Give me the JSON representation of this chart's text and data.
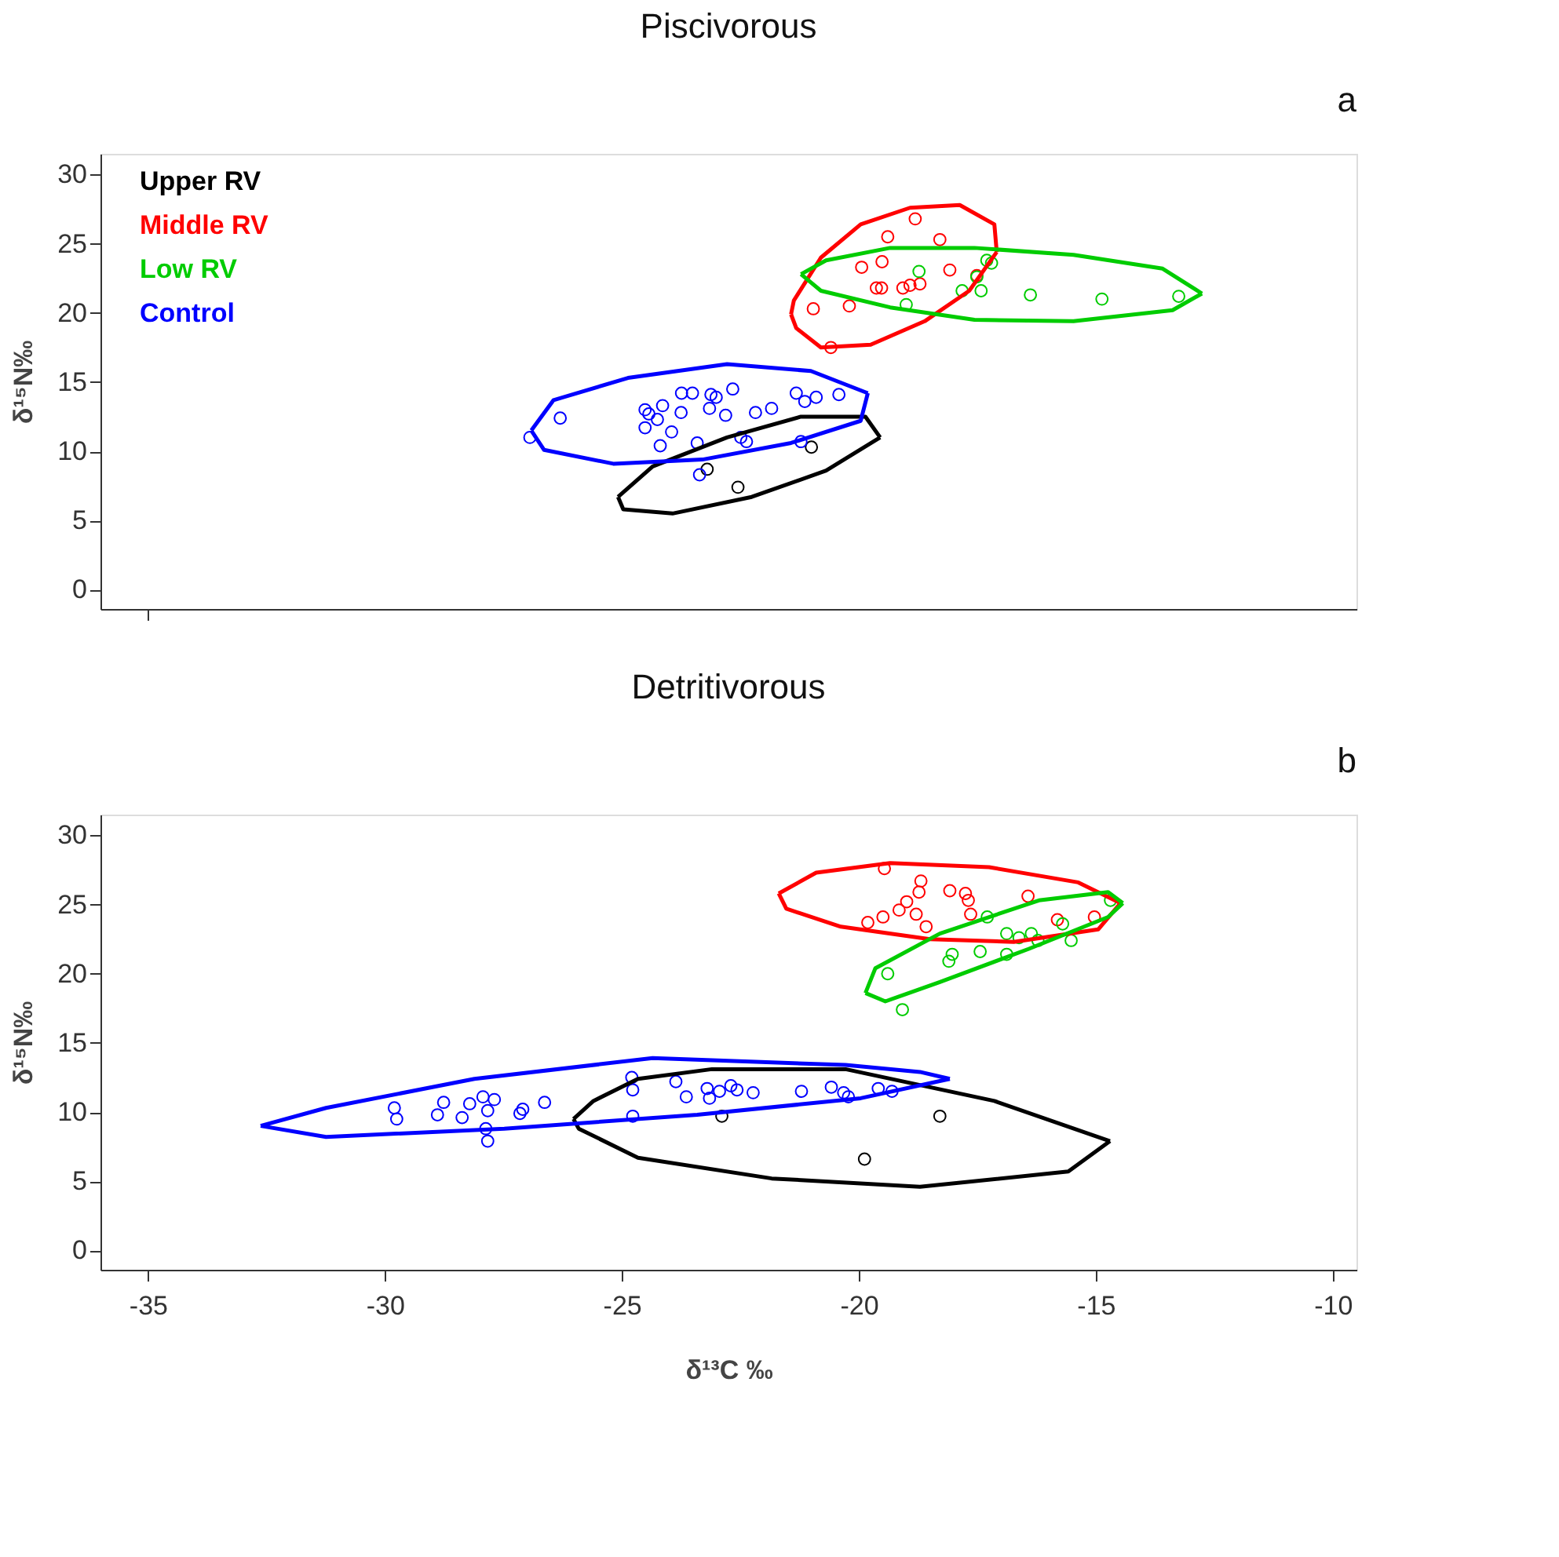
{
  "chart_data": [
    {
      "type": "scatter",
      "title": "Piscivorous",
      "ylabel": "δ¹⁵N‰",
      "annotations": [
        "a"
      ],
      "xlim": [
        -36,
        -9.5
      ],
      "ylim": [
        -1.4,
        31.5
      ],
      "xticks": [
        {
          "value": -35,
          "label": null
        }
      ],
      "yticks": [
        0,
        5,
        10,
        15,
        20,
        25,
        30
      ],
      "tick_labels": "y",
      "grid": false,
      "legend": "top left",
      "marker": "circle",
      "series": [
        {
          "name": "Upper RV",
          "color": "#000000",
          "x": [
            -23.2,
            -22.55,
            -21.0
          ],
          "values": [
            8.7,
            7.4,
            10.3
          ]
        },
        {
          "name": "Middle RV",
          "color": "#ff0000",
          "x": [
            -18.81,
            -19.39,
            -18.29,
            -19.51,
            -19.94,
            -18.08,
            -17.51,
            -19.63,
            -19.52,
            -19.07,
            -18.71,
            -18.92,
            -20.96,
            -20.2,
            -20.59
          ],
          "values": [
            26.8,
            25.5,
            25.3,
            23.7,
            23.3,
            23.1,
            22.7,
            21.8,
            21.8,
            21.8,
            22.1,
            22.0,
            20.3,
            20.5,
            17.5
          ]
        },
        {
          "name": "Low RV",
          "color": "#00cc00",
          "x": [
            -17.2,
            -17.3,
            -18.73,
            -17.51,
            -17.82,
            -17.42,
            -16.38,
            -14.87,
            -13.25,
            -19.0
          ],
          "values": [
            23.6,
            23.8,
            23.0,
            22.6,
            21.6,
            21.6,
            21.3,
            21.0,
            21.2,
            20.6
          ]
        },
        {
          "name": "Control",
          "color": "#0000ff",
          "x": [
            -26.94,
            -26.3,
            -24.51,
            -24.43,
            -24.14,
            -24.51,
            -24.25,
            -23.95,
            -24.19,
            -23.75,
            -23.74,
            -23.51,
            -23.12,
            -23.01,
            -23.15,
            -22.81,
            -22.66,
            -22.18,
            -21.84,
            -23.41,
            -22.49,
            -22.37,
            -23.36,
            -21.32,
            -21.14,
            -20.9,
            -20.42,
            -21.22
          ],
          "values": [
            11.0,
            12.4,
            13.0,
            12.7,
            13.3,
            11.7,
            12.3,
            11.4,
            10.4,
            12.8,
            14.2,
            14.2,
            14.1,
            13.9,
            13.1,
            12.6,
            14.5,
            12.8,
            13.1,
            10.6,
            11.0,
            10.7,
            8.3,
            14.2,
            13.6,
            13.9,
            14.1,
            10.7
          ]
        },
        {
          "type": "line",
          "marker": "none",
          "color": "#000000",
          "x": [
            -25.08,
            -24.35,
            -22.78,
            -21.22,
            -19.86,
            -19.55
          ],
          "values": [
            6.7,
            8.9,
            11.0,
            12.5,
            12.5,
            11.0
          ]
        },
        {
          "type": "line",
          "marker": "none",
          "color": "#000000",
          "x": [
            -25.08,
            -24.97,
            -23.93,
            -22.26,
            -20.69,
            -19.55
          ],
          "values": [
            6.7,
            5.8,
            5.5,
            6.7,
            8.6,
            11.0
          ]
        },
        {
          "type": "line",
          "marker": "none",
          "color": "#ff0000",
          "x": [
            -21.43,
            -21.37,
            -20.8,
            -19.96,
            -18.92,
            -17.87,
            -17.14,
            -17.09
          ],
          "values": [
            19.9,
            20.9,
            24.0,
            26.4,
            27.6,
            27.8,
            26.4,
            24.4
          ]
        },
        {
          "type": "line",
          "marker": "none",
          "color": "#ff0000",
          "x": [
            -21.43,
            -21.32,
            -20.8,
            -19.75,
            -18.61,
            -17.67,
            -17.09
          ],
          "values": [
            19.9,
            18.9,
            17.5,
            17.7,
            19.4,
            21.6,
            24.4
          ]
        },
        {
          "type": "line",
          "marker": "none",
          "color": "#00cc00",
          "x": [
            -21.22,
            -20.69,
            -19.34,
            -17.56,
            -15.47,
            -13.59,
            -12.76
          ],
          "values": [
            22.8,
            23.8,
            24.7,
            24.7,
            24.2,
            23.2,
            21.4
          ]
        },
        {
          "type": "line",
          "marker": "none",
          "color": "#00cc00",
          "x": [
            -21.22,
            -20.8,
            -19.34,
            -17.56,
            -15.47,
            -13.38,
            -12.76
          ],
          "values": [
            22.8,
            21.6,
            20.4,
            19.5,
            19.4,
            20.2,
            21.4
          ]
        },
        {
          "type": "line",
          "marker": "none",
          "color": "#0000ff",
          "x": [
            -26.91,
            -26.44,
            -24.87,
            -22.78,
            -21.01,
            -19.81
          ],
          "values": [
            11.5,
            13.7,
            15.3,
            16.3,
            15.8,
            14.2
          ]
        },
        {
          "type": "line",
          "marker": "none",
          "color": "#0000ff",
          "x": [
            -26.91,
            -26.64,
            -25.18,
            -23.3,
            -21.43,
            -19.96,
            -19.81
          ],
          "values": [
            11.5,
            10.1,
            9.1,
            9.4,
            10.6,
            12.2,
            14.2
          ]
        }
      ]
    },
    {
      "type": "scatter",
      "title": "Detritivorous",
      "xlabel": "δ¹³C ‰",
      "ylabel": "δ¹⁵N‰",
      "annotations": [
        "b"
      ],
      "xlim": [
        -36,
        -9.5
      ],
      "ylim": [
        -1.4,
        31.5
      ],
      "xticks": [
        -35,
        -30,
        -25,
        -20,
        -15,
        -10
      ],
      "yticks": [
        0,
        5,
        10,
        15,
        20,
        25,
        30
      ],
      "grid": false,
      "marker": "circle",
      "series": [
        {
          "color": "#000000",
          "x": [
            -22.89,
            -18.29,
            -19.88
          ],
          "values": [
            9.7,
            9.7,
            6.6
          ]
        },
        {
          "color": "#ff0000",
          "x": [
            -19.46,
            -18.69,
            -18.73,
            -18.08,
            -17.75,
            -17.69,
            -16.43,
            -18.99,
            -19.15,
            -18.79,
            -19.49,
            -19.81,
            -18.58,
            -17.64,
            -15.81,
            -15.03
          ],
          "values": [
            27.6,
            26.7,
            25.9,
            26.0,
            25.8,
            25.3,
            25.6,
            25.2,
            24.6,
            24.3,
            24.1,
            23.7,
            23.4,
            24.3,
            23.9,
            24.1
          ]
        },
        {
          "color": "#00cc00",
          "x": [
            -14.69,
            -17.29,
            -15.7,
            -16.88,
            -16.62,
            -16.36,
            -16.22,
            -15.52,
            -17.44,
            -16.88,
            -18.03,
            -18.1,
            -19.39,
            -19.08
          ],
          "values": [
            25.3,
            24.1,
            23.6,
            22.9,
            22.6,
            22.9,
            22.4,
            22.4,
            21.6,
            21.4,
            21.4,
            20.9,
            20.0,
            17.4
          ]
        },
        {
          "color": "#0000ff",
          "x": [
            -29.8,
            -29.75,
            -28.89,
            -28.76,
            -28.37,
            -28.21,
            -27.93,
            -27.69,
            -27.83,
            -27.87,
            -27.83,
            -27.15,
            -27.09,
            -26.63,
            -24.79,
            -24.77,
            -24.77,
            -23.86,
            -23.64,
            -23.2,
            -23.15,
            -22.94,
            -22.7,
            -22.57,
            -22.23,
            -21.21,
            -20.58,
            -20.32,
            -20.22,
            -19.59,
            -19.3
          ],
          "values": [
            10.3,
            9.5,
            9.8,
            10.7,
            9.6,
            10.6,
            11.1,
            10.9,
            10.1,
            8.8,
            7.9,
            9.9,
            10.2,
            10.7,
            12.5,
            11.6,
            9.7,
            12.2,
            11.1,
            11.7,
            11.0,
            11.5,
            11.9,
            11.6,
            11.4,
            11.5,
            11.8,
            11.4,
            11.1,
            11.7,
            11.5
          ]
        },
        {
          "type": "line",
          "marker": "none",
          "color": "#000000",
          "x": [
            -26.02,
            -25.6,
            -24.66,
            -23.1,
            -20.28,
            -17.14,
            -14.7
          ],
          "values": [
            9.5,
            10.8,
            12.4,
            13.1,
            13.1,
            10.8,
            7.9
          ]
        },
        {
          "type": "line",
          "marker": "none",
          "color": "#000000",
          "x": [
            -26.02,
            -25.91,
            -24.66,
            -21.84,
            -18.71,
            -15.58,
            -14.7
          ],
          "values": [
            9.5,
            8.8,
            6.7,
            5.2,
            4.6,
            5.7,
            7.9
          ]
        },
        {
          "type": "line",
          "marker": "none",
          "color": "#ff0000",
          "x": [
            -21.69,
            -20.9,
            -19.34,
            -17.25,
            -15.37,
            -14.48
          ],
          "values": [
            25.8,
            27.3,
            28.0,
            27.7,
            26.6,
            25.1
          ]
        },
        {
          "type": "line",
          "marker": "none",
          "color": "#ff0000",
          "x": [
            -21.69,
            -21.53,
            -20.38,
            -18.5,
            -16.73,
            -14.95,
            -14.48
          ],
          "values": [
            25.8,
            24.7,
            23.4,
            22.5,
            22.3,
            23.2,
            25.1
          ]
        },
        {
          "type": "line",
          "marker": "none",
          "color": "#00cc00",
          "x": [
            -19.86,
            -19.65,
            -18.29,
            -16.2,
            -14.74,
            -14.43
          ],
          "values": [
            18.6,
            20.4,
            22.9,
            25.3,
            25.9,
            25.1
          ]
        },
        {
          "type": "line",
          "marker": "none",
          "color": "#00cc00",
          "x": [
            -19.86,
            -19.44,
            -18.29,
            -16.41,
            -14.74,
            -14.43
          ],
          "values": [
            18.6,
            18.0,
            19.4,
            21.8,
            24.1,
            25.1
          ]
        },
        {
          "type": "line",
          "marker": "none",
          "color": "#0000ff",
          "x": [
            -32.62,
            -31.24,
            -28.11,
            -24.35,
            -20.28,
            -18.71,
            -18.08
          ],
          "values": [
            9.0,
            10.3,
            12.4,
            13.9,
            13.4,
            12.9,
            12.4
          ]
        },
        {
          "type": "line",
          "marker": "none",
          "color": "#0000ff",
          "x": [
            -32.62,
            -31.24,
            -27.48,
            -23.41,
            -19.96,
            -18.08
          ],
          "values": [
            9.0,
            8.2,
            8.8,
            9.8,
            11.0,
            12.4
          ]
        }
      ]
    }
  ]
}
